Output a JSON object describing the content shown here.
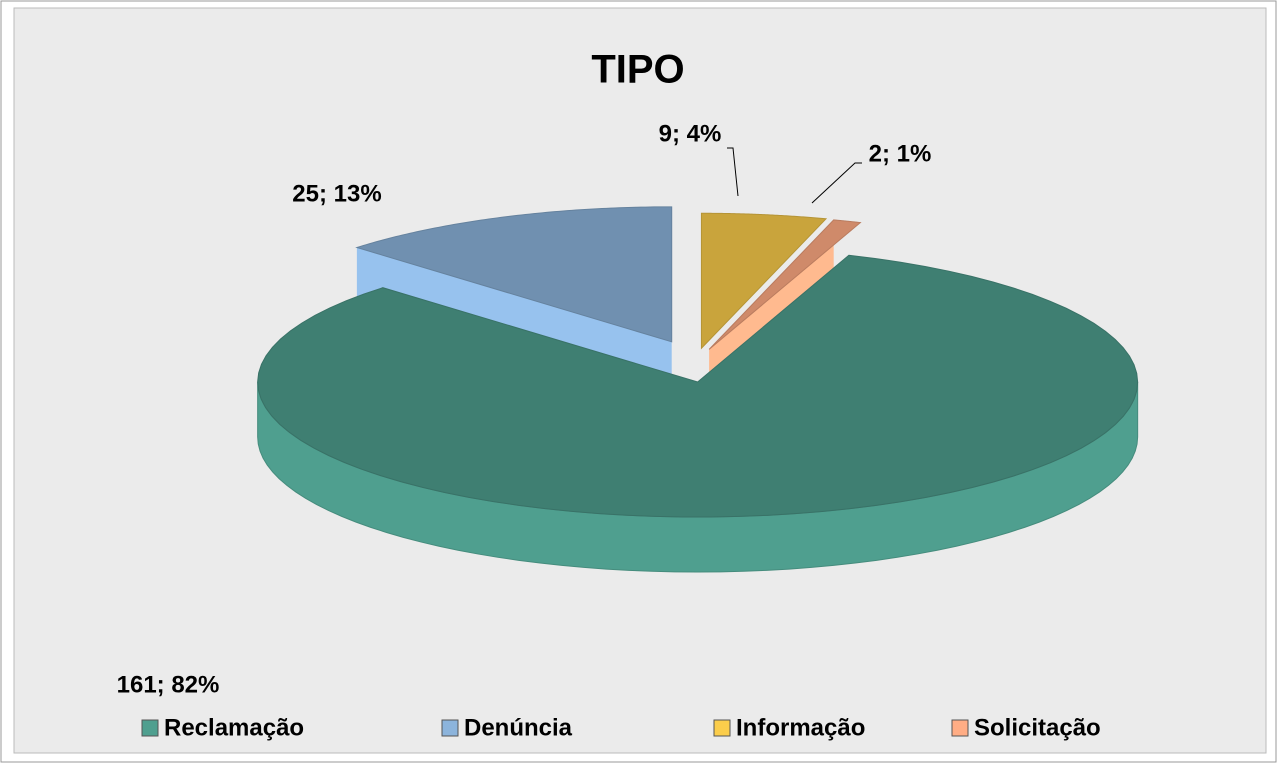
{
  "chart_data": {
    "type": "pie",
    "title": "TIPO",
    "categories": [
      "Reclamação",
      "Denúncia",
      "Informação",
      "Solicitação"
    ],
    "values": [
      161,
      25,
      9,
      2
    ],
    "value_labels": [
      "161; 82%",
      "25; 13%",
      "9; 4%",
      "2; 1%"
    ],
    "colors": [
      "#3f7f72",
      "#7090b0",
      "#c9a43c",
      "#cf8a6a"
    ],
    "legend": "bottom"
  }
}
